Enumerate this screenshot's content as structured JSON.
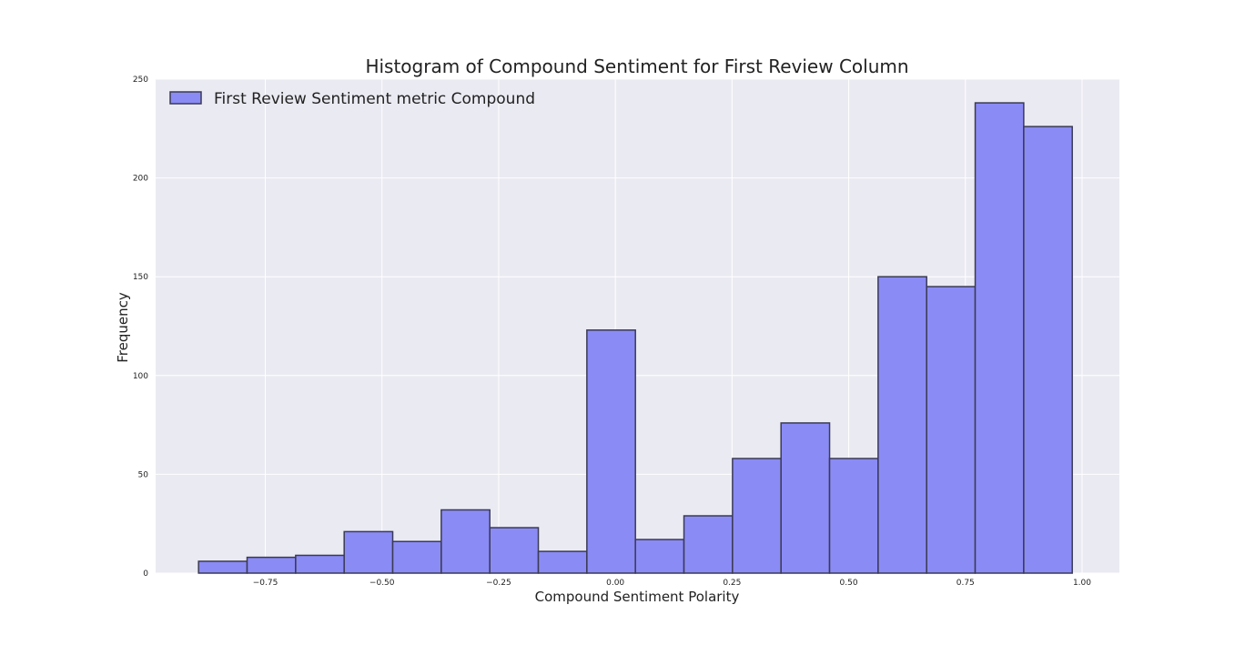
{
  "chart_data": {
    "type": "bar",
    "title": "Histogram of Compound Sentiment for First Review Column",
    "xlabel": "Compound Sentiment Polarity",
    "ylabel": "Frequency",
    "xlim": [
      -0.985,
      1.08
    ],
    "ylim": [
      0,
      250
    ],
    "xticks": [
      -0.75,
      -0.5,
      -0.25,
      0.0,
      0.25,
      0.5,
      0.75,
      1.0
    ],
    "xtick_labels": [
      "−0.75",
      "−0.50",
      "−0.25",
      "0.00",
      "0.25",
      "0.50",
      "0.75",
      "1.00"
    ],
    "yticks": [
      0,
      50,
      100,
      150,
      200,
      250
    ],
    "ytick_labels": [
      "0",
      "50",
      "100",
      "150",
      "200",
      "250"
    ],
    "grid": true,
    "legend": {
      "position": "top-left",
      "entries": [
        "First Review Sentiment metric Compound"
      ]
    },
    "colors": {
      "bar_fill": "#8b8bf5",
      "bar_edge": "#3a3a55",
      "background": "#eaeaf2",
      "grid": "#ffffff"
    },
    "bin_edges": [
      -0.893,
      -0.789,
      -0.685,
      -0.581,
      -0.477,
      -0.373,
      -0.269,
      -0.165,
      -0.061,
      0.043,
      0.147,
      0.251,
      0.355,
      0.459,
      0.563,
      0.667,
      0.771,
      0.875,
      0.979
    ],
    "series": [
      {
        "name": "First Review Sentiment metric Compound",
        "values": [
          6,
          8,
          9,
          21,
          16,
          32,
          23,
          11,
          123,
          17,
          29,
          58,
          76,
          58,
          150,
          145,
          238,
          226
        ]
      }
    ]
  }
}
